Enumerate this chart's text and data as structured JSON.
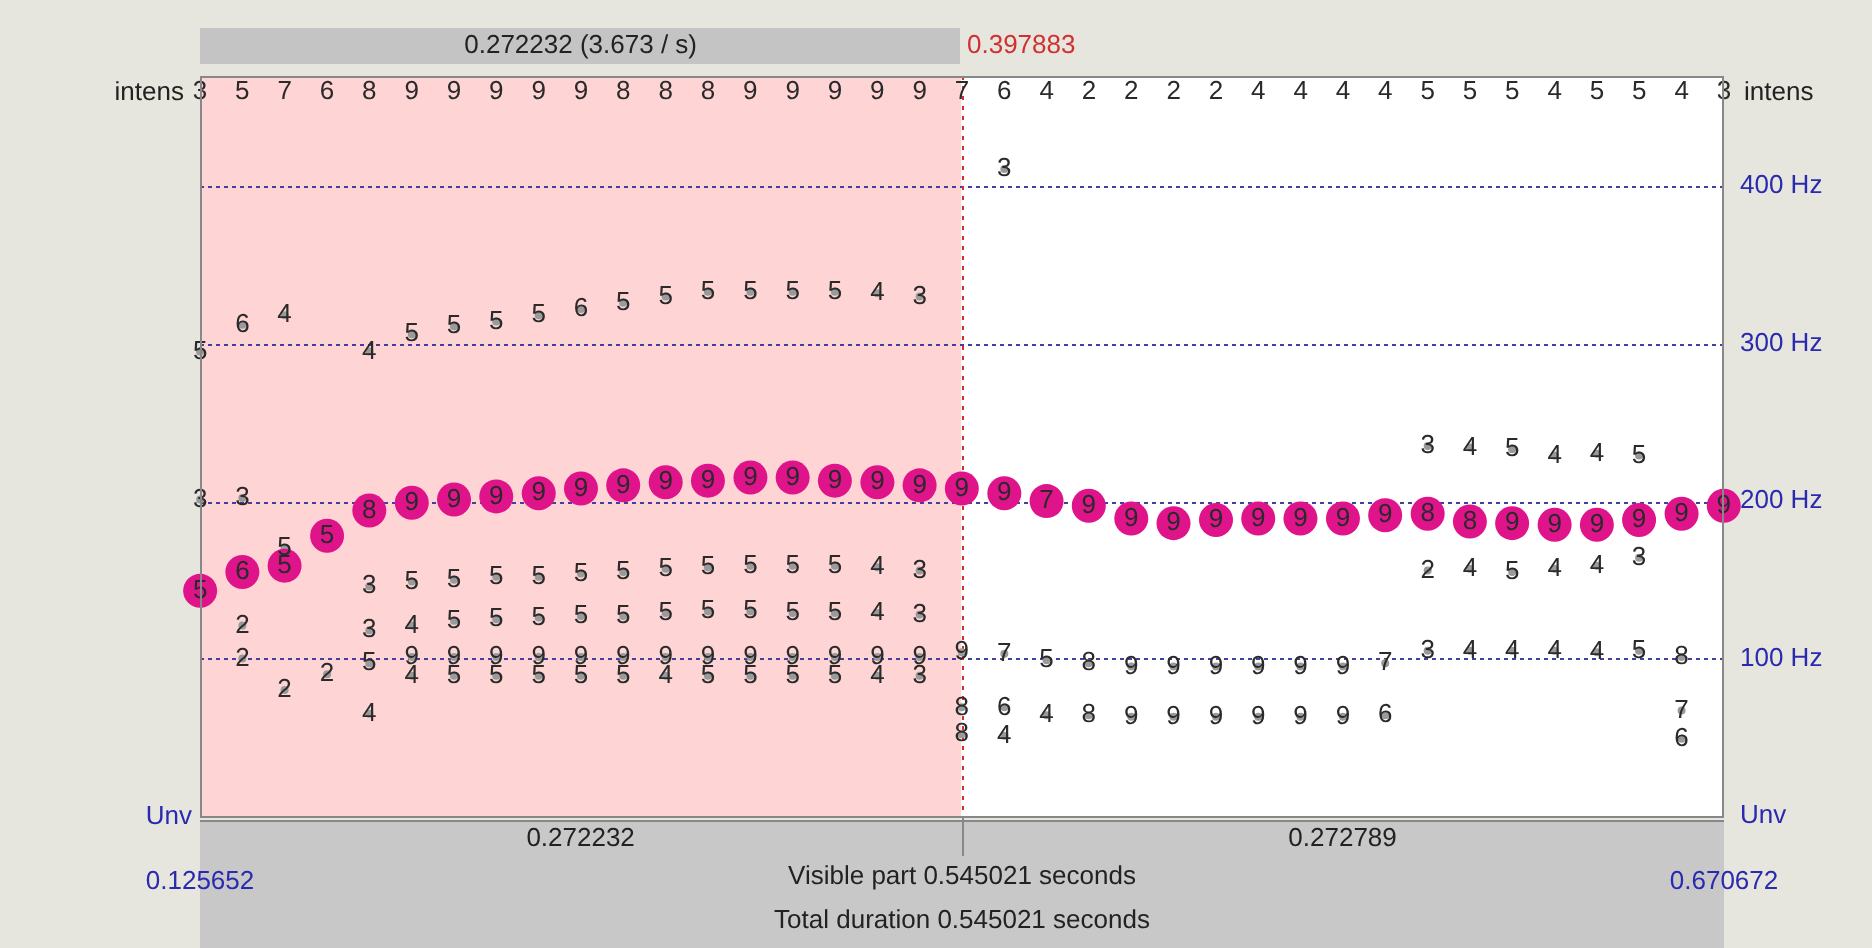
{
  "chart_data": {
    "type": "scatter",
    "marker": "circle",
    "grid": "y",
    "legend": false,
    "xlim": [
      0.125652,
      0.670672
    ],
    "xticks": [
      0.125652,
      0.670672
    ],
    "ylim": [
      0,
      470
    ],
    "yticks": [
      {
        "value": 0,
        "label": "Unv"
      },
      {
        "value": 100,
        "label": "100 Hz"
      },
      {
        "value": 200,
        "label": "200 Hz"
      },
      {
        "value": 300,
        "label": "300 Hz"
      },
      {
        "value": 400,
        "label": "400 Hz"
      }
    ],
    "bands": [
      {
        "axis": "x",
        "from": 0.125652,
        "to": 0.397883,
        "label": "0.272232 (3.673 / s)",
        "color": "#ffd4d4"
      }
    ],
    "ref_lines": [
      {
        "axis": "x",
        "value": 0.397883,
        "label": "0.397883",
        "color": "#d03030",
        "line_style": "dotted"
      }
    ],
    "series": [
      {
        "color": "#e0148a",
        "x": [
          0.1257,
          0.1408,
          0.1559,
          0.1711,
          0.1862,
          0.2014,
          0.2165,
          0.2316,
          0.2468,
          0.2619,
          0.277,
          0.2922,
          0.3073,
          0.3225,
          0.3376,
          0.3527,
          0.3679,
          0.383,
          0.3981,
          0.4133,
          0.4284,
          0.4435,
          0.4587,
          0.4738,
          0.489,
          0.5041,
          0.5192,
          0.5344,
          0.5495,
          0.5647,
          0.5798,
          0.5949,
          0.6101,
          0.6252,
          0.6403,
          0.6555,
          0.6706
        ],
        "values": [
          143,
          155,
          159,
          178,
          194,
          199,
          201,
          203,
          205,
          208,
          210,
          212,
          213,
          215,
          215,
          213,
          212,
          210,
          208,
          205,
          200,
          197,
          189,
          186,
          188,
          189,
          189,
          189,
          191,
          192,
          187,
          186,
          185,
          185,
          188,
          192,
          197
        ]
      },
      {
        "color": "#9a9a9a",
        "x": [
          0.1257,
          0.1408,
          0.1559,
          0.1862,
          0.2014,
          0.2165,
          0.2316,
          0.2468,
          0.2619,
          0.277,
          0.2922,
          0.3073,
          0.3225,
          0.3376,
          0.3527,
          0.3679,
          0.383,
          0.4133,
          0.5647,
          0.5798,
          0.5949,
          0.6101,
          0.6252,
          0.6403,
          0.1257,
          0.1408,
          0.1559,
          0.1862,
          0.2014,
          0.2165,
          0.2316,
          0.2468,
          0.2619,
          0.277,
          0.2922,
          0.3073,
          0.3225,
          0.3376,
          0.3527,
          0.3679,
          0.383,
          0.5647,
          0.5798,
          0.5949,
          0.6101,
          0.6252,
          0.6403,
          0.1408,
          0.1862,
          0.2014,
          0.2165,
          0.2316,
          0.2468,
          0.2619,
          0.277,
          0.2922,
          0.3073,
          0.3225,
          0.3376,
          0.3527,
          0.3679,
          0.383,
          0.1408,
          0.1711,
          0.1862,
          0.2014,
          0.2165,
          0.2316,
          0.2468,
          0.2619,
          0.277,
          0.2922,
          0.3073,
          0.3225,
          0.3376,
          0.3527,
          0.3679,
          0.383,
          0.3981,
          0.4133,
          0.4284,
          0.4435,
          0.4587,
          0.4738,
          0.489,
          0.5041,
          0.5192,
          0.5344,
          0.5495,
          0.5647,
          0.5798,
          0.5949,
          0.6101,
          0.6252,
          0.6403,
          0.6555,
          0.2014,
          0.2165,
          0.2316,
          0.2468,
          0.2619,
          0.277,
          0.2922,
          0.3073,
          0.3225,
          0.3376,
          0.3527,
          0.3679,
          0.383,
          0.1559,
          0.1862,
          0.3981,
          0.3981,
          0.4133,
          0.4133,
          0.4284,
          0.4435,
          0.4587,
          0.4738,
          0.489,
          0.5041,
          0.5192,
          0.5344,
          0.5495,
          0.6555,
          0.6555
        ],
        "values": [
          295,
          312,
          318,
          295,
          306,
          311,
          314,
          318,
          322,
          326,
          330,
          333,
          333,
          333,
          333,
          332,
          330,
          411,
          235,
          234,
          233,
          229,
          230,
          229,
          201,
          202,
          170,
          146,
          149,
          150,
          152,
          152,
          154,
          155,
          157,
          158,
          159,
          159,
          159,
          158,
          156,
          156,
          157,
          155,
          157,
          159,
          164,
          121,
          118,
          121,
          124,
          125,
          126,
          127,
          127,
          129,
          130,
          130,
          129,
          129,
          129,
          128,
          100,
          90,
          97,
          101,
          101,
          101,
          101,
          101,
          101,
          101,
          101,
          101,
          101,
          101,
          101,
          101,
          104,
          103,
          99,
          97,
          95,
          95,
          95,
          95,
          95,
          95,
          97,
          105,
          105,
          105,
          105,
          104,
          105,
          101,
          89,
          89,
          89,
          89,
          89,
          89,
          89,
          89,
          89,
          89,
          89,
          89,
          89,
          80,
          65,
          69,
          52,
          69,
          51,
          64,
          64,
          63,
          63,
          63,
          63,
          63,
          63,
          64,
          67,
          49
        ]
      }
    ],
    "annotations": [
      "0.272232",
      "0.272789",
      "Visible part 0.545021 seconds",
      "Total duration 0.545021 seconds",
      "intens",
      "intens",
      "Unv",
      "3",
      "5",
      "7",
      "6",
      "8",
      "9",
      "9",
      "9",
      "9",
      "9",
      "8",
      "8",
      "8",
      "9",
      "9",
      "9",
      "9",
      "9",
      "7",
      "6",
      "4",
      "2",
      "2",
      "2",
      "2",
      "4",
      "4",
      "4",
      "4",
      "5",
      "5",
      "5",
      "4",
      "5",
      "5",
      "4",
      "3",
      {
        "text": "5",
        "x": 0.1257,
        "y": 143
      },
      {
        "text": "6",
        "x": 0.1408,
        "y": 155
      },
      {
        "text": "5",
        "x": 0.1559,
        "y": 159
      },
      {
        "text": "5",
        "x": 0.1711,
        "y": 178
      },
      {
        "text": "8",
        "x": 0.1862,
        "y": 194
      },
      {
        "text": "9",
        "x": 0.2014,
        "y": 199
      },
      {
        "text": "9",
        "x": 0.2165,
        "y": 201
      },
      {
        "text": "9",
        "x": 0.2316,
        "y": 203
      },
      {
        "text": "9",
        "x": 0.2468,
        "y": 205
      },
      {
        "text": "9",
        "x": 0.2619,
        "y": 208
      },
      {
        "text": "9",
        "x": 0.277,
        "y": 210
      },
      {
        "text": "9",
        "x": 0.2922,
        "y": 212
      },
      {
        "text": "9",
        "x": 0.3073,
        "y": 213
      },
      {
        "text": "9",
        "x": 0.3225,
        "y": 215
      },
      {
        "text": "9",
        "x": 0.3376,
        "y": 215
      },
      {
        "text": "9",
        "x": 0.3527,
        "y": 213
      },
      {
        "text": "9",
        "x": 0.3679,
        "y": 212
      },
      {
        "text": "9",
        "x": 0.383,
        "y": 210
      },
      {
        "text": "9",
        "x": 0.3981,
        "y": 208
      },
      {
        "text": "9",
        "x": 0.4133,
        "y": 205
      },
      {
        "text": "7",
        "x": 0.4284,
        "y": 200
      },
      {
        "text": "9",
        "x": 0.4435,
        "y": 197
      },
      {
        "text": "9",
        "x": 0.4587,
        "y": 189
      },
      {
        "text": "9",
        "x": 0.4738,
        "y": 186
      },
      {
        "text": "9",
        "x": 0.489,
        "y": 188
      },
      {
        "text": "9",
        "x": 0.5041,
        "y": 189
      },
      {
        "text": "9",
        "x": 0.5192,
        "y": 189
      },
      {
        "text": "9",
        "x": 0.5344,
        "y": 189
      },
      {
        "text": "9",
        "x": 0.5495,
        "y": 191
      },
      {
        "text": "8",
        "x": 0.5647,
        "y": 192
      },
      {
        "text": "8",
        "x": 0.5798,
        "y": 187
      },
      {
        "text": "9",
        "x": 0.5949,
        "y": 186
      },
      {
        "text": "9",
        "x": 0.6101,
        "y": 185
      },
      {
        "text": "9",
        "x": 0.6252,
        "y": 185
      },
      {
        "text": "9",
        "x": 0.6403,
        "y": 188
      },
      {
        "text": "9",
        "x": 0.6555,
        "y": 192
      },
      {
        "text": "9",
        "x": 0.6706,
        "y": 197
      },
      {
        "text": "5",
        "x": 0.1257,
        "y": 295
      },
      {
        "text": "6",
        "x": 0.1408,
        "y": 312
      },
      {
        "text": "4",
        "x": 0.1559,
        "y": 318
      },
      {
        "text": "4",
        "x": 0.1862,
        "y": 295
      },
      {
        "text": "5",
        "x": 0.2014,
        "y": 306
      },
      {
        "text": "5",
        "x": 0.2165,
        "y": 311
      },
      {
        "text": "5",
        "x": 0.2316,
        "y": 314
      },
      {
        "text": "5",
        "x": 0.2468,
        "y": 318
      },
      {
        "text": "6",
        "x": 0.2619,
        "y": 322
      },
      {
        "text": "5",
        "x": 0.277,
        "y": 326
      },
      {
        "text": "5",
        "x": 0.2922,
        "y": 330
      },
      {
        "text": "5",
        "x": 0.3073,
        "y": 333
      },
      {
        "text": "5",
        "x": 0.3225,
        "y": 333
      },
      {
        "text": "5",
        "x": 0.3376,
        "y": 333
      },
      {
        "text": "5",
        "x": 0.3527,
        "y": 333
      },
      {
        "text": "4",
        "x": 0.3679,
        "y": 332
      },
      {
        "text": "3",
        "x": 0.383,
        "y": 330
      },
      {
        "text": "3",
        "x": 0.4133,
        "y": 411
      },
      {
        "text": "3",
        "x": 0.5647,
        "y": 235
      },
      {
        "text": "4",
        "x": 0.5798,
        "y": 234
      },
      {
        "text": "5",
        "x": 0.5949,
        "y": 233
      },
      {
        "text": "4",
        "x": 0.6101,
        "y": 229
      },
      {
        "text": "4",
        "x": 0.6252,
        "y": 230
      },
      {
        "text": "5",
        "x": 0.6403,
        "y": 229
      },
      {
        "text": "3",
        "x": 0.1257,
        "y": 201
      },
      {
        "text": "3",
        "x": 0.1408,
        "y": 202
      },
      {
        "text": "5",
        "x": 0.1559,
        "y": 170
      },
      {
        "text": "3",
        "x": 0.1862,
        "y": 146
      },
      {
        "text": "5",
        "x": 0.2014,
        "y": 149
      },
      {
        "text": "5",
        "x": 0.2165,
        "y": 150
      },
      {
        "text": "5",
        "x": 0.2316,
        "y": 152
      },
      {
        "text": "5",
        "x": 0.2468,
        "y": 152
      },
      {
        "text": "5",
        "x": 0.2619,
        "y": 154
      },
      {
        "text": "5",
        "x": 0.277,
        "y": 155
      },
      {
        "text": "5",
        "x": 0.2922,
        "y": 157
      },
      {
        "text": "5",
        "x": 0.3073,
        "y": 158
      },
      {
        "text": "5",
        "x": 0.3225,
        "y": 159
      },
      {
        "text": "5",
        "x": 0.3376,
        "y": 159
      },
      {
        "text": "5",
        "x": 0.3527,
        "y": 159
      },
      {
        "text": "4",
        "x": 0.3679,
        "y": 158
      },
      {
        "text": "3",
        "x": 0.383,
        "y": 156
      },
      {
        "text": "2",
        "x": 0.5647,
        "y": 156
      },
      {
        "text": "4",
        "x": 0.5798,
        "y": 157
      },
      {
        "text": "5",
        "x": 0.5949,
        "y": 155
      },
      {
        "text": "4",
        "x": 0.6101,
        "y": 157
      },
      {
        "text": "4",
        "x": 0.6252,
        "y": 159
      },
      {
        "text": "3",
        "x": 0.6403,
        "y": 164
      },
      {
        "text": "2",
        "x": 0.1408,
        "y": 121
      },
      {
        "text": "3",
        "x": 0.1862,
        "y": 118
      },
      {
        "text": "4",
        "x": 0.2014,
        "y": 121
      },
      {
        "text": "5",
        "x": 0.2165,
        "y": 124
      },
      {
        "text": "5",
        "x": 0.2316,
        "y": 125
      },
      {
        "text": "5",
        "x": 0.2468,
        "y": 126
      },
      {
        "text": "5",
        "x": 0.2619,
        "y": 127
      },
      {
        "text": "5",
        "x": 0.277,
        "y": 127
      },
      {
        "text": "5",
        "x": 0.2922,
        "y": 129
      },
      {
        "text": "5",
        "x": 0.3073,
        "y": 130
      },
      {
        "text": "5",
        "x": 0.3225,
        "y": 130
      },
      {
        "text": "5",
        "x": 0.3376,
        "y": 129
      },
      {
        "text": "5",
        "x": 0.3527,
        "y": 129
      },
      {
        "text": "4",
        "x": 0.3679,
        "y": 129
      },
      {
        "text": "3",
        "x": 0.383,
        "y": 128
      },
      {
        "text": "2",
        "x": 0.1408,
        "y": 100
      },
      {
        "text": "2",
        "x": 0.1711,
        "y": 90
      },
      {
        "text": "5",
        "x": 0.1862,
        "y": 97
      },
      {
        "text": "9",
        "x": 0.2014,
        "y": 101
      },
      {
        "text": "9",
        "x": 0.2165,
        "y": 101
      },
      {
        "text": "9",
        "x": 0.2316,
        "y": 101
      },
      {
        "text": "9",
        "x": 0.2468,
        "y": 101
      },
      {
        "text": "9",
        "x": 0.2619,
        "y": 101
      },
      {
        "text": "9",
        "x": 0.277,
        "y": 101
      },
      {
        "text": "9",
        "x": 0.2922,
        "y": 101
      },
      {
        "text": "9",
        "x": 0.3073,
        "y": 101
      },
      {
        "text": "9",
        "x": 0.3225,
        "y": 101
      },
      {
        "text": "9",
        "x": 0.3376,
        "y": 101
      },
      {
        "text": "9",
        "x": 0.3527,
        "y": 101
      },
      {
        "text": "9",
        "x": 0.3679,
        "y": 101
      },
      {
        "text": "9",
        "x": 0.383,
        "y": 101
      },
      {
        "text": "9",
        "x": 0.3981,
        "y": 104
      },
      {
        "text": "7",
        "x": 0.4133,
        "y": 103
      },
      {
        "text": "5",
        "x": 0.4284,
        "y": 99
      },
      {
        "text": "8",
        "x": 0.4435,
        "y": 97
      },
      {
        "text": "9",
        "x": 0.4587,
        "y": 95
      },
      {
        "text": "9",
        "x": 0.4738,
        "y": 95
      },
      {
        "text": "9",
        "x": 0.489,
        "y": 95
      },
      {
        "text": "9",
        "x": 0.5041,
        "y": 95
      },
      {
        "text": "9",
        "x": 0.5192,
        "y": 95
      },
      {
        "text": "9",
        "x": 0.5344,
        "y": 95
      },
      {
        "text": "7",
        "x": 0.5495,
        "y": 97
      },
      {
        "text": "3",
        "x": 0.5647,
        "y": 105
      },
      {
        "text": "4",
        "x": 0.5798,
        "y": 105
      },
      {
        "text": "4",
        "x": 0.5949,
        "y": 105
      },
      {
        "text": "4",
        "x": 0.6101,
        "y": 105
      },
      {
        "text": "4",
        "x": 0.6252,
        "y": 104
      },
      {
        "text": "5",
        "x": 0.6403,
        "y": 105
      },
      {
        "text": "8",
        "x": 0.6555,
        "y": 101
      },
      {
        "text": "4",
        "x": 0.2014,
        "y": 89
      },
      {
        "text": "5",
        "x": 0.2165,
        "y": 89
      },
      {
        "text": "5",
        "x": 0.2316,
        "y": 89
      },
      {
        "text": "5",
        "x": 0.2468,
        "y": 89
      },
      {
        "text": "5",
        "x": 0.2619,
        "y": 89
      },
      {
        "text": "5",
        "x": 0.277,
        "y": 89
      },
      {
        "text": "4",
        "x": 0.2922,
        "y": 89
      },
      {
        "text": "5",
        "x": 0.3073,
        "y": 89
      },
      {
        "text": "5",
        "x": 0.3225,
        "y": 89
      },
      {
        "text": "5",
        "x": 0.3376,
        "y": 89
      },
      {
        "text": "5",
        "x": 0.3527,
        "y": 89
      },
      {
        "text": "4",
        "x": 0.3679,
        "y": 89
      },
      {
        "text": "3",
        "x": 0.383,
        "y": 89
      },
      {
        "text": "2",
        "x": 0.1559,
        "y": 80
      },
      {
        "text": "4",
        "x": 0.1862,
        "y": 65
      },
      {
        "text": "8",
        "x": 0.3981,
        "y": 69
      },
      {
        "text": "8",
        "x": 0.3981,
        "y": 52
      },
      {
        "text": "6",
        "x": 0.4133,
        "y": 69
      },
      {
        "text": "4",
        "x": 0.4133,
        "y": 51
      },
      {
        "text": "4",
        "x": 0.4284,
        "y": 64
      },
      {
        "text": "8",
        "x": 0.4435,
        "y": 64
      },
      {
        "text": "9",
        "x": 0.4587,
        "y": 63
      },
      {
        "text": "9",
        "x": 0.4738,
        "y": 63
      },
      {
        "text": "9",
        "x": 0.489,
        "y": 63
      },
      {
        "text": "9",
        "x": 0.5041,
        "y": 63
      },
      {
        "text": "9",
        "x": 0.5192,
        "y": 63
      },
      {
        "text": "9",
        "x": 0.5344,
        "y": 63
      },
      {
        "text": "6",
        "x": 0.5495,
        "y": 64
      },
      {
        "text": "7",
        "x": 0.6555,
        "y": 67
      },
      {
        "text": "6",
        "x": 0.6555,
        "y": 49
      }
    ]
  }
}
